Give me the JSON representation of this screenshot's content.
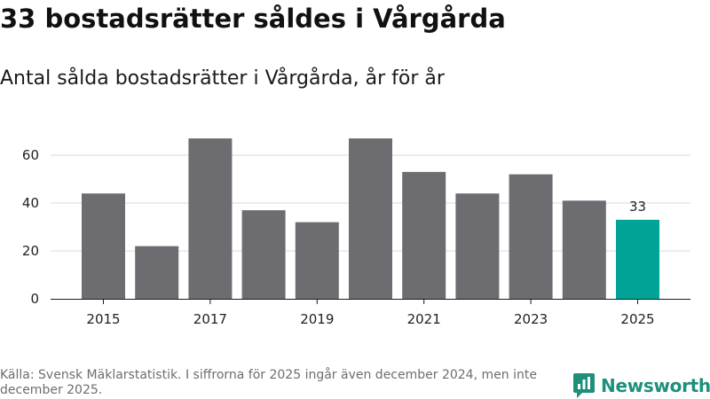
{
  "header": {
    "title": "33 bostadsrätter såldes i Vårgårda",
    "subtitle": "Antal sålda bostadsrätter i Vårgårda, år för år"
  },
  "chart_data": {
    "type": "bar",
    "title": "Antal sålda bostadsrätter i Vårgårda, år för år",
    "categories": [
      "2015",
      "2016",
      "2017",
      "2018",
      "2019",
      "2020",
      "2021",
      "2022",
      "2023",
      "2024",
      "2025"
    ],
    "values": [
      44,
      22,
      67,
      37,
      32,
      67,
      53,
      44,
      52,
      41,
      33
    ],
    "x_tick_labels": [
      "2015",
      "2017",
      "2019",
      "2021",
      "2023",
      "2025"
    ],
    "y_ticks": [
      0,
      20,
      40,
      60
    ],
    "ylim": [
      0,
      70
    ],
    "xlabel": "",
    "ylabel": "",
    "grid": true,
    "highlight_index": 10,
    "highlight_label": "33",
    "colors": {
      "bar": "#6d6c71",
      "highlight": "#00a396",
      "grid": "#d9d9d9",
      "axis": "#1a1a1a"
    }
  },
  "footer": {
    "source": "Källa: Svensk Mäklarstatistik. I siffrorna för 2025 ingår även december 2024, men inte december 2025.",
    "brand": "Newsworthy",
    "brand_icon": "newsworthy-logo-icon"
  }
}
